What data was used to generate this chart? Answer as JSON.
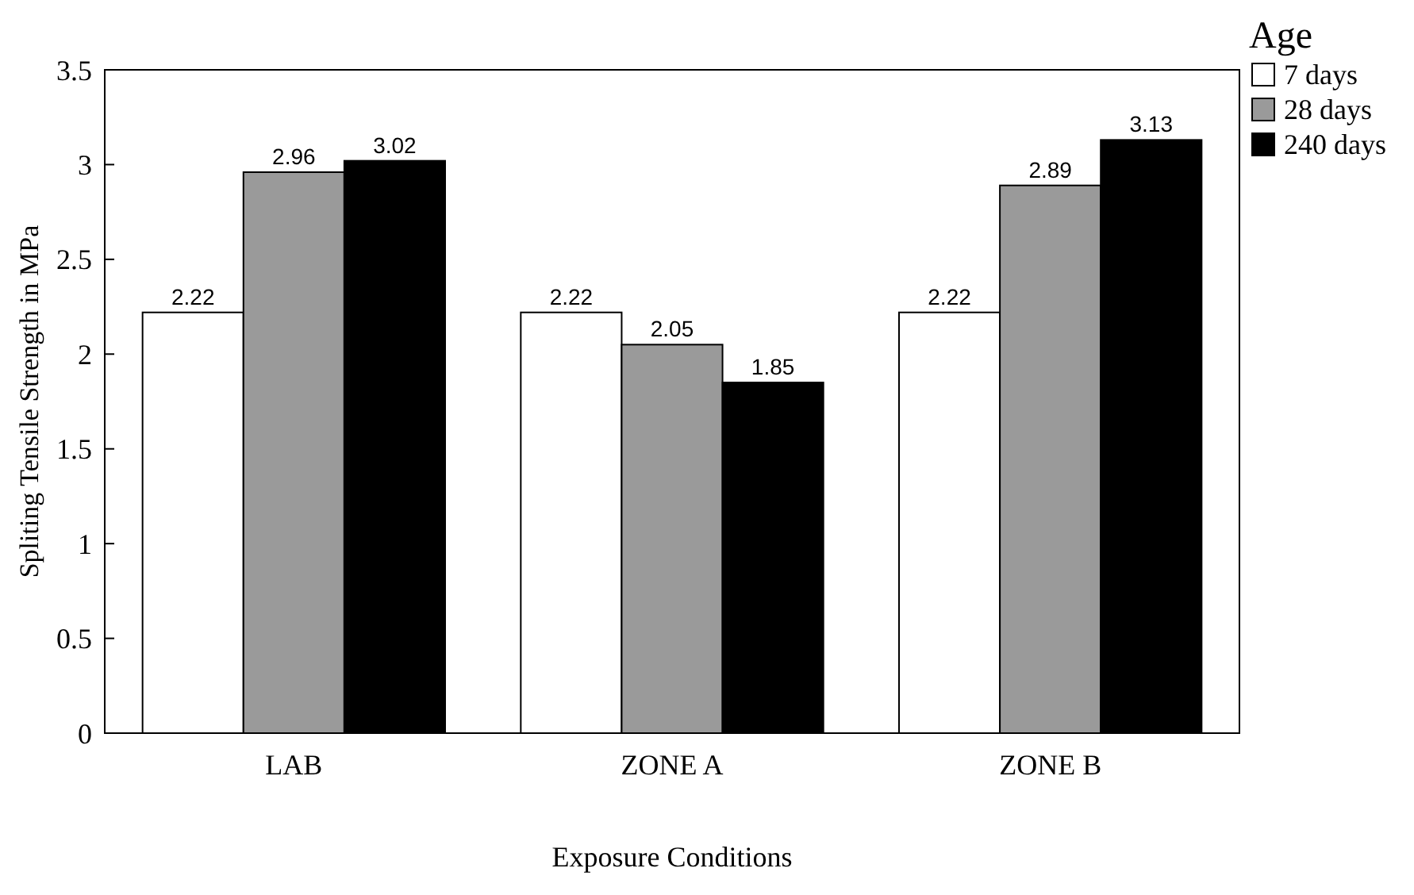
{
  "chart_data": {
    "type": "bar",
    "xlabel": "Exposure Conditions",
    "ylabel": "Spliting Tensile Strength in MPa",
    "legend_title": "Age",
    "categories": [
      "LAB",
      "ZONE A",
      "ZONE B"
    ],
    "series": [
      {
        "name": "7 days",
        "color": "#ffffff",
        "values": [
          2.22,
          2.22,
          2.22
        ]
      },
      {
        "name": "28 days",
        "color": "#9a9a9a",
        "values": [
          2.96,
          2.05,
          2.89
        ]
      },
      {
        "name": "240 days",
        "color": "#000000",
        "values": [
          3.02,
          1.85,
          3.13
        ]
      }
    ],
    "ylim": [
      0,
      3.5
    ],
    "yticks": [
      0,
      0.5,
      1,
      1.5,
      2,
      2.5,
      3,
      3.5
    ],
    "data_labels": true,
    "legend": "top right",
    "grid": false
  }
}
